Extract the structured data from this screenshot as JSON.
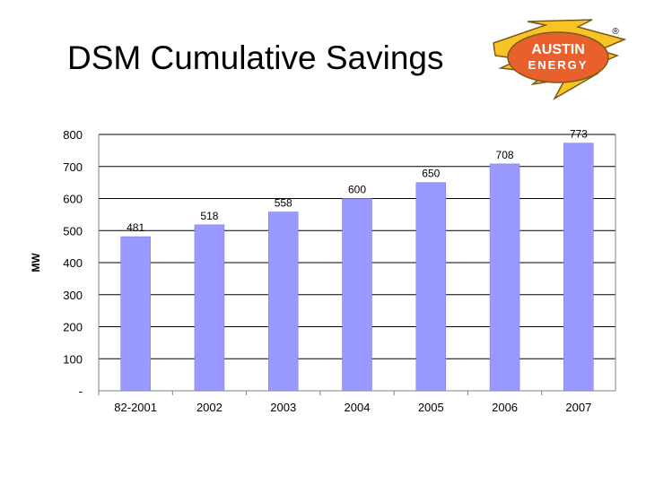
{
  "slide": {
    "title": "DSM Cumulative Savings"
  },
  "logo": {
    "line1": "AUSTIN",
    "line2": "ENERGY",
    "mark": "®",
    "colors": {
      "bolt": "#F7C325",
      "oval": "#E8612C",
      "text": "#ffffff",
      "outline": "#7a5a1a"
    }
  },
  "chart_data": {
    "type": "bar",
    "categories": [
      "82-2001",
      "2002",
      "2003",
      "2004",
      "2005",
      "2006",
      "2007"
    ],
    "values": [
      481,
      518,
      558,
      600,
      650,
      708,
      773
    ],
    "data_labels": [
      "481",
      "518",
      "558",
      "600",
      "650",
      "708",
      "773"
    ],
    "ylabel": "MW",
    "xlabel": "",
    "ylim": [
      0,
      800
    ],
    "yticks": [
      0,
      100,
      200,
      300,
      400,
      500,
      600,
      700,
      800
    ],
    "ytick_labels": [
      "-",
      "100",
      "200",
      "300",
      "400",
      "500",
      "600",
      "700",
      "800"
    ],
    "grid": true,
    "legend": "none",
    "colors": {
      "bar": "#9999FF",
      "bar_edge": "#7777dd",
      "grid": "#000000",
      "axis": "#808080"
    }
  }
}
